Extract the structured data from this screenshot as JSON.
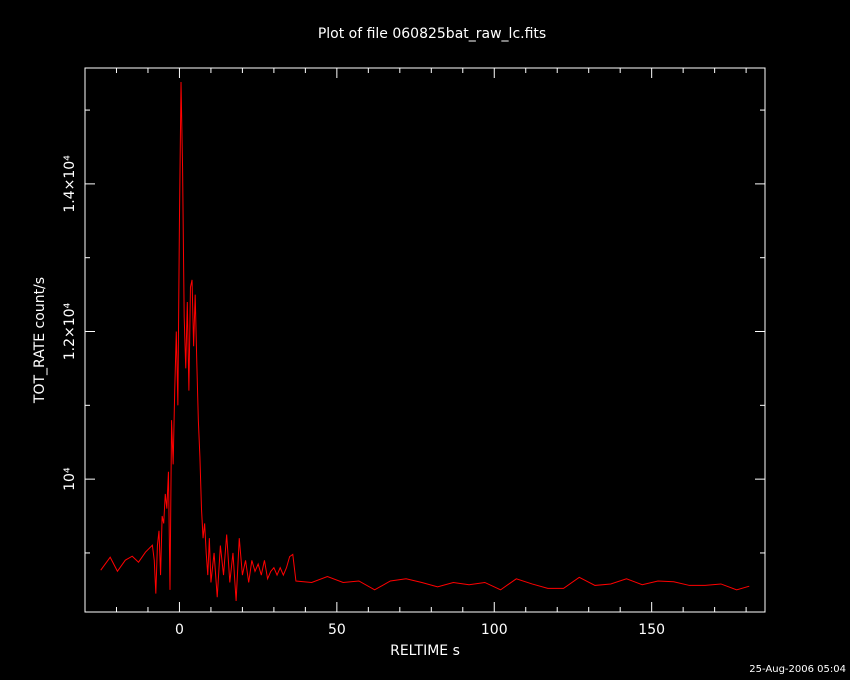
{
  "chart_data": {
    "type": "line",
    "title": "Plot of file 060825bat_raw_lc.fits",
    "xlabel": "RELTIME  s",
    "ylabel": "TOT_RATE  count/s",
    "footer": "25-Aug-2006 05:04",
    "color": "#ff0000",
    "xlim": [
      -30,
      186
    ],
    "ylim": [
      8200,
      15570
    ],
    "xticks": [
      0,
      50,
      100,
      150
    ],
    "yticks": [
      {
        "value": 10000,
        "label": "10⁴"
      },
      {
        "value": 12000,
        "label": "1.2×10⁴"
      },
      {
        "value": 14000,
        "label": "1.4×10⁴"
      }
    ],
    "xminor_ticks": [
      -20,
      -10,
      10,
      20,
      30,
      40,
      60,
      70,
      80,
      90,
      110,
      120,
      130,
      140,
      160,
      170,
      180
    ],
    "yminor_ticks": [
      9000,
      11000,
      13000,
      15000
    ],
    "x": [
      -25,
      -22,
      -19.7,
      -17.2,
      -15,
      -13,
      -10.8,
      -8.6,
      -8,
      -7.5,
      -7,
      -6.5,
      -6,
      -5.5,
      -5,
      -4.5,
      -4,
      -3.5,
      -3,
      -2.5,
      -2,
      -1.5,
      -1,
      -0.5,
      0,
      0.5,
      1,
      1.5,
      2,
      2.5,
      3,
      3.5,
      4,
      4.5,
      5,
      5.5,
      6,
      6.5,
      7,
      7.5,
      8,
      8.5,
      9,
      9.5,
      10,
      11,
      12,
      13,
      14,
      15,
      16,
      17,
      18,
      19,
      20,
      21,
      22,
      23,
      24,
      25,
      26,
      27,
      28,
      29,
      30,
      31,
      32,
      33,
      34,
      35,
      36,
      37,
      42,
      47,
      52,
      57,
      62,
      67,
      72,
      77,
      82,
      87,
      92,
      97,
      102,
      107,
      112,
      117,
      122,
      127,
      132,
      137,
      142,
      147,
      152,
      157,
      162,
      167,
      172,
      177,
      181
    ],
    "values": [
      8766,
      8942,
      8752,
      8902,
      8956,
      8875,
      9010,
      9105,
      8900,
      8450,
      9100,
      9300,
      8700,
      9500,
      9400,
      9800,
      9600,
      10100,
      8500,
      10800,
      10200,
      11200,
      12000,
      11000,
      13500,
      15380,
      14200,
      12200,
      11500,
      12400,
      11200,
      12600,
      12700,
      11800,
      12500,
      11600,
      10800,
      10300,
      9600,
      9200,
      9400,
      9000,
      8700,
      9200,
      8600,
      9000,
      8400,
      9100,
      8700,
      9250,
      8600,
      9000,
      8350,
      9200,
      8700,
      8900,
      8600,
      8900,
      8750,
      8850,
      8700,
      8900,
      8650,
      8750,
      8800,
      8700,
      8800,
      8700,
      8800,
      8950,
      8980,
      8620,
      8600,
      8680,
      8600,
      8620,
      8500,
      8620,
      8650,
      8600,
      8540,
      8600,
      8570,
      8600,
      8500,
      8650,
      8580,
      8520,
      8520,
      8670,
      8560,
      8580,
      8650,
      8570,
      8620,
      8610,
      8560,
      8560,
      8580,
      8500,
      8550
    ]
  }
}
